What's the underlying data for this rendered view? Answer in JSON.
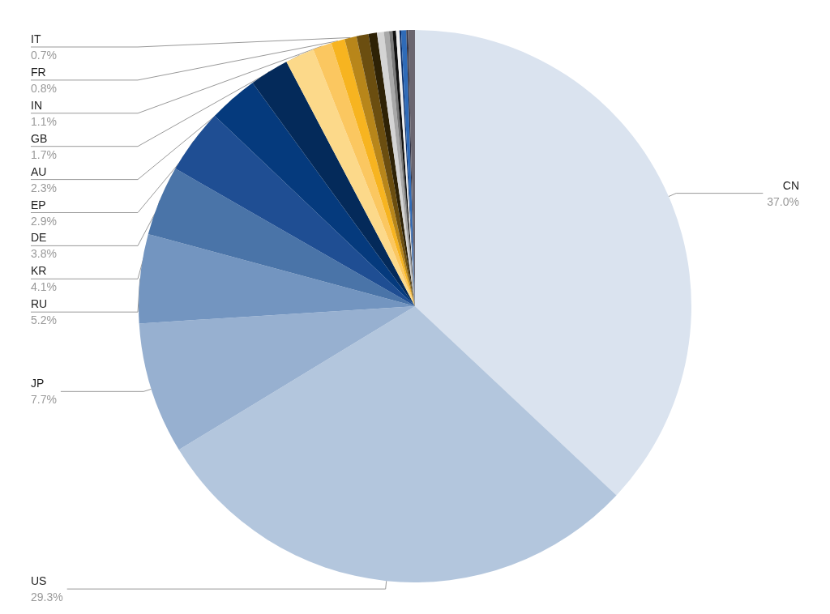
{
  "chart_data": {
    "type": "pie",
    "categories": [
      "CN",
      "US",
      "JP",
      "RU",
      "KR",
      "DE",
      "EP",
      "AU",
      "GB",
      "IN",
      "FR",
      "IT",
      null,
      null,
      null,
      null,
      null,
      null,
      null,
      null,
      null,
      null,
      null
    ],
    "values": [
      37.0,
      29.3,
      7.7,
      5.2,
      4.1,
      3.8,
      2.9,
      2.3,
      1.7,
      1.1,
      0.8,
      0.7,
      0.7,
      0.5,
      0.4,
      0.3,
      0.2,
      0.2,
      0.2,
      0.1,
      0.3,
      0.1,
      0.4
    ],
    "value_labels": [
      "37.0%",
      "29.3%",
      "7.7%",
      "5.2%",
      "4.1%",
      "3.8%",
      "2.9%",
      "2.3%",
      "1.7%",
      "1.1%",
      "0.8%",
      "0.7%",
      null,
      null,
      null,
      null,
      null,
      null,
      null,
      null,
      null,
      null,
      null
    ],
    "colors": [
      "#dae3ef",
      "#b3c6dd",
      "#97b0d0",
      "#7395c0",
      "#4a74a8",
      "#1f4e93",
      "#053a7d",
      "#042a5a",
      "#fcd98a",
      "#fbc760",
      "#f7b420",
      "#b8861a",
      "#6b4e10",
      "#2e2206",
      "#d4d4d4",
      "#a8a8a8",
      "#7a7a7a",
      "#111111",
      "#eeeeee",
      "#0c2f6a",
      "#2f6bb8",
      "#333344",
      "#6a6670"
    ],
    "legend": false
  }
}
